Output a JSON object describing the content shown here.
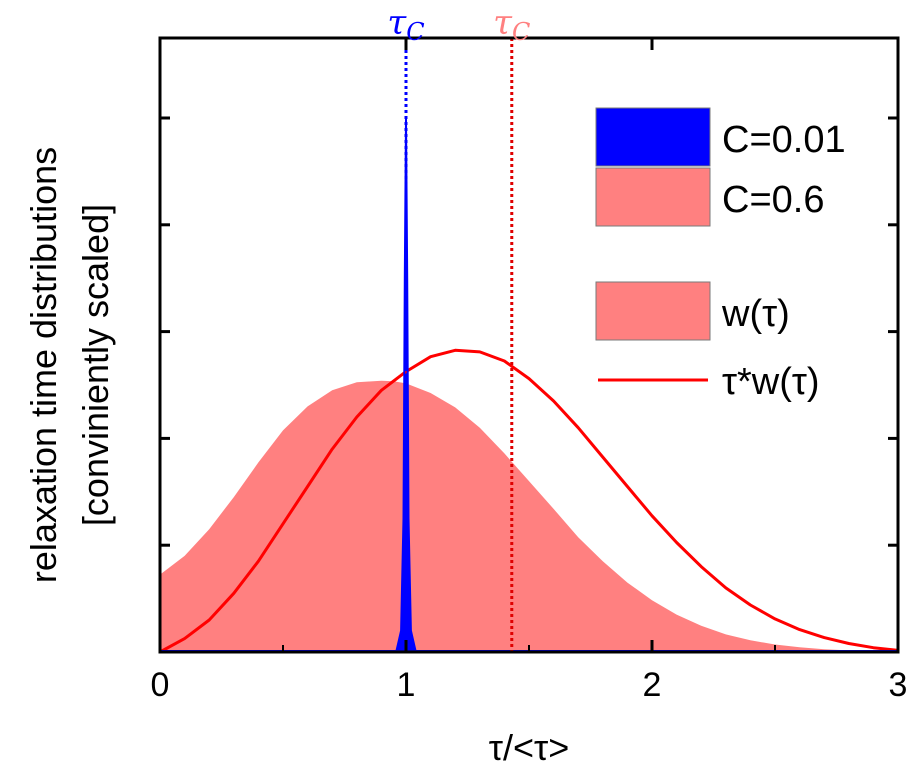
{
  "chart_data": {
    "type": "area",
    "xlabel": "τ/<τ>",
    "ylabel": [
      "relaxation time distributions",
      "[conviniently scaled]"
    ],
    "xlim": [
      0,
      3
    ],
    "ylim": [
      0,
      1
    ],
    "xticks": [
      0,
      1,
      2,
      3
    ],
    "xtick_labels": [
      "0",
      "1",
      "2",
      "3"
    ],
    "yticks": [
      0.2,
      0.4,
      0.6,
      0.8,
      1.0
    ],
    "grid": false,
    "legend_position": "top-right",
    "legend": [
      {
        "label": "C=0.01",
        "color": "#0000ff",
        "kind": "filled"
      },
      {
        "label": "C=0.6",
        "color": "#ff8080",
        "kind": "filled"
      },
      {
        "label": "w(τ)",
        "color": "#ff8080",
        "kind": "filled"
      },
      {
        "label": "τ*w(τ)",
        "color": "#ff0000",
        "kind": "line"
      }
    ],
    "reference_lines": [
      {
        "label": "τ",
        "subscript": "C",
        "x": 1.0,
        "color": "#0000ff"
      },
      {
        "label": "τ",
        "subscript": "C",
        "x": 1.43,
        "color": "#ff8080",
        "line_color": "#e00000"
      }
    ],
    "series": [
      {
        "name": "C=0.6 w(τ)",
        "kind": "area",
        "color": "#ff8080",
        "x": [
          0,
          0.1,
          0.2,
          0.3,
          0.4,
          0.5,
          0.6,
          0.7,
          0.8,
          0.9,
          0.95,
          1.0,
          1.1,
          1.2,
          1.3,
          1.4,
          1.5,
          1.6,
          1.7,
          1.8,
          1.9,
          2.0,
          2.1,
          2.2,
          2.3,
          2.4,
          2.5,
          2.6,
          2.7,
          2.8,
          2.9,
          3.0
        ],
        "y": [
          0.145,
          0.18,
          0.23,
          0.29,
          0.355,
          0.415,
          0.46,
          0.49,
          0.505,
          0.508,
          0.507,
          0.503,
          0.485,
          0.458,
          0.42,
          0.372,
          0.32,
          0.268,
          0.215,
          0.17,
          0.13,
          0.097,
          0.07,
          0.049,
          0.033,
          0.022,
          0.014,
          0.009,
          0.005,
          0.003,
          0.0015,
          0.0008
        ]
      },
      {
        "name": "C=0.6 τ*w(τ)",
        "kind": "line",
        "color": "#ff0000",
        "x": [
          0,
          0.1,
          0.2,
          0.3,
          0.4,
          0.5,
          0.6,
          0.7,
          0.8,
          0.9,
          1.0,
          1.1,
          1.2,
          1.3,
          1.4,
          1.5,
          1.6,
          1.7,
          1.8,
          1.9,
          2.0,
          2.1,
          2.2,
          2.3,
          2.4,
          2.5,
          2.6,
          2.7,
          2.8,
          2.9,
          3.0
        ],
        "y": [
          0.0,
          0.025,
          0.06,
          0.11,
          0.17,
          0.24,
          0.31,
          0.38,
          0.44,
          0.49,
          0.525,
          0.553,
          0.565,
          0.562,
          0.545,
          0.512,
          0.47,
          0.42,
          0.365,
          0.31,
          0.255,
          0.205,
          0.16,
          0.12,
          0.088,
          0.062,
          0.042,
          0.027,
          0.016,
          0.008,
          0.003
        ]
      },
      {
        "name": "C=0.01",
        "kind": "area",
        "color": "#0000ff",
        "x": [
          0.96,
          0.98,
          0.99,
          0.995,
          1.0,
          1.005,
          1.01,
          1.02,
          1.04
        ],
        "y": [
          0.0,
          0.04,
          0.25,
          0.7,
          1.0,
          0.7,
          0.25,
          0.04,
          0.0
        ]
      }
    ]
  }
}
